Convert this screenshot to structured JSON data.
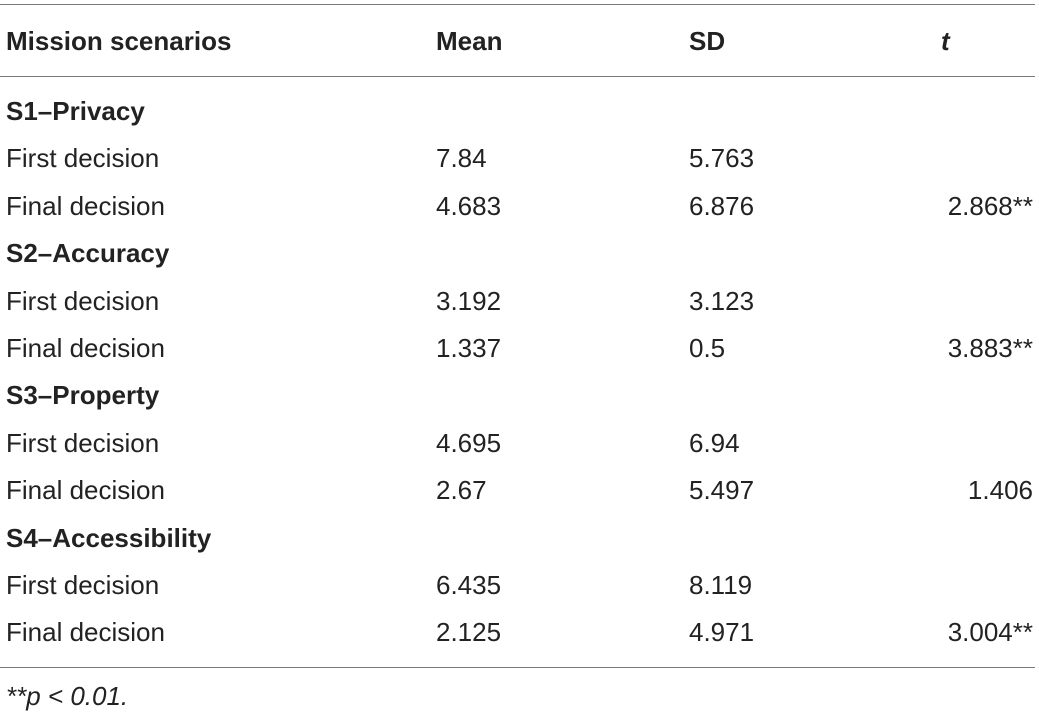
{
  "header": {
    "scenario": "Mission scenarios",
    "mean": "Mean",
    "sd": "SD",
    "t": "t"
  },
  "rows": [
    {
      "type": "section",
      "label": "S1–Privacy"
    },
    {
      "type": "data",
      "label": "First decision",
      "mean": "7.84",
      "sd": "5.763",
      "t": ""
    },
    {
      "type": "data",
      "label": "Final decision",
      "mean": "4.683",
      "sd": "6.876",
      "t": "2.868**"
    },
    {
      "type": "section",
      "label": "S2–Accuracy"
    },
    {
      "type": "data",
      "label": "First decision",
      "mean": "3.192",
      "sd": "3.123",
      "t": ""
    },
    {
      "type": "data",
      "label": "Final decision",
      "mean": "1.337",
      "sd": "0.5",
      "t": "3.883**"
    },
    {
      "type": "section",
      "label": "S3–Property"
    },
    {
      "type": "data",
      "label": "First decision",
      "mean": "4.695",
      "sd": "6.94",
      "t": ""
    },
    {
      "type": "data",
      "label": "Final decision",
      "mean": "2.67",
      "sd": "5.497",
      "t": "1.406"
    },
    {
      "type": "section",
      "label": "S4–Accessibility"
    },
    {
      "type": "data",
      "label": "First decision",
      "mean": "6.435",
      "sd": "8.119",
      "t": ""
    },
    {
      "type": "data",
      "label": "Final decision",
      "mean": "2.125",
      "sd": "4.971",
      "t": "3.004**"
    }
  ],
  "footnote": "**p < 0.01."
}
